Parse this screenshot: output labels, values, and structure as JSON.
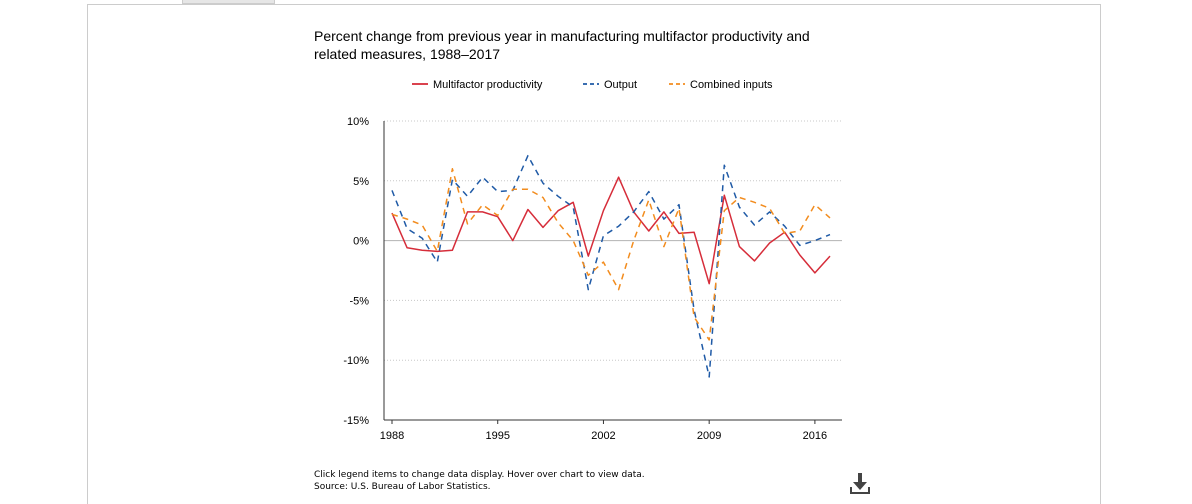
{
  "chart_data": {
    "type": "line",
    "title": "Percent change from previous year in manufacturing multifactor productivity and related measures, 1988–2017",
    "xlabel": "",
    "ylabel": "",
    "x": [
      1988,
      1989,
      1990,
      1991,
      1992,
      1993,
      1994,
      1995,
      1996,
      1997,
      1998,
      1999,
      2000,
      2001,
      2002,
      2003,
      2004,
      2005,
      2006,
      2007,
      2008,
      2009,
      2010,
      2011,
      2012,
      2013,
      2014,
      2015,
      2016,
      2017
    ],
    "x_ticks": [
      1988,
      1995,
      2002,
      2009,
      2016
    ],
    "x_tick_labels": [
      "1988",
      "1995",
      "2002",
      "2009",
      "2016"
    ],
    "ylim": [
      -15,
      10
    ],
    "y_ticks": [
      -15,
      -10,
      -5,
      0,
      5,
      10
    ],
    "y_tick_labels": [
      "-15%",
      "-10%",
      "-5%",
      "0%",
      "5%",
      "10%"
    ],
    "grid": "dotted horizontal",
    "legend_position": "top",
    "series": [
      {
        "name": "Multifactor productivity",
        "color": "#d62d3a",
        "dash": "solid",
        "values": [
          2.3,
          -0.6,
          -0.8,
          -0.9,
          -0.8,
          2.4,
          2.4,
          2.0,
          0.0,
          2.6,
          1.1,
          2.5,
          3.2,
          -1.3,
          2.5,
          5.3,
          2.4,
          0.8,
          2.4,
          0.6,
          0.7,
          -3.6,
          3.8,
          -0.5,
          -1.7,
          -0.2,
          0.7,
          -1.2,
          -2.7,
          -1.3
        ]
      },
      {
        "name": "Output",
        "color": "#1f5aa6",
        "dash": "dashed",
        "values": [
          4.2,
          1.0,
          0.2,
          -1.8,
          5.1,
          3.7,
          5.3,
          4.1,
          4.2,
          7.1,
          4.8,
          3.7,
          2.8,
          -4.1,
          0.4,
          1.2,
          2.4,
          4.1,
          1.8,
          3.0,
          -5.8,
          -11.4,
          6.3,
          2.8,
          1.3,
          2.4,
          1.2,
          -0.4,
          0.0,
          0.5
        ]
      },
      {
        "name": "Combined inputs",
        "color": "#f28c1e",
        "dash": "dashed",
        "values": [
          2.2,
          1.8,
          1.3,
          -0.9,
          6.0,
          1.4,
          3.0,
          2.1,
          4.3,
          4.3,
          3.6,
          1.5,
          0.0,
          -2.9,
          -1.8,
          -4.1,
          0.0,
          3.4,
          -0.5,
          2.7,
          -6.4,
          -8.3,
          2.5,
          3.6,
          3.2,
          2.7,
          0.6,
          0.8,
          3.0,
          1.9
        ]
      }
    ]
  },
  "footnotes": {
    "instruction": "Click legend items to change data display. Hover over chart to view data.",
    "source": "Source: U.S. Bureau of Labor Statistics."
  },
  "download": {
    "icon": "download-icon"
  }
}
